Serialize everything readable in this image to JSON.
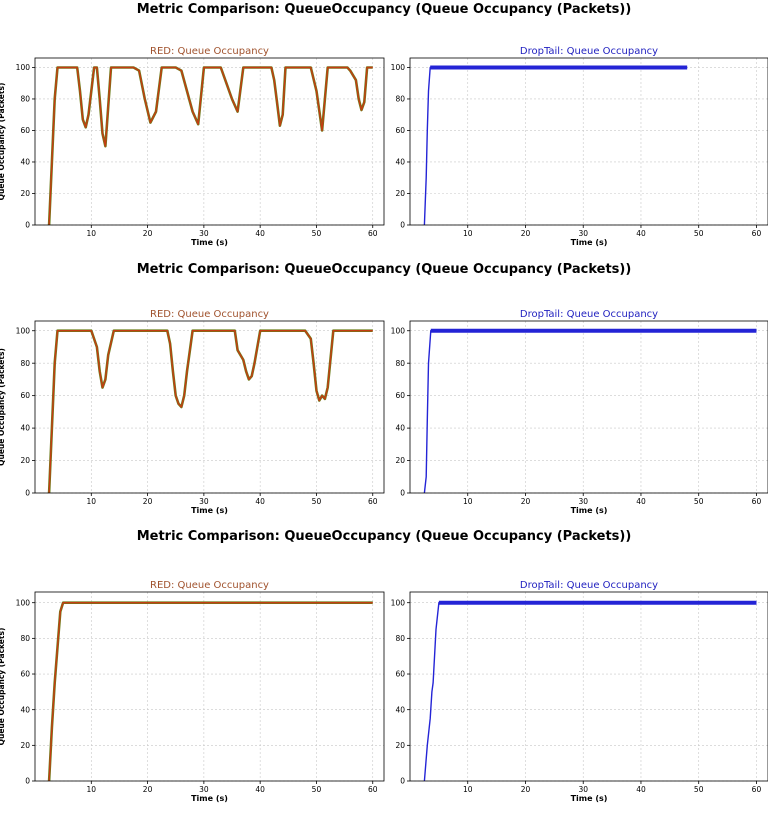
{
  "figure_titles": [
    "Metric Comparison: QueueOccupancy (Queue Occupancy (Packets))",
    "Metric Comparison: QueueOccupancy (Queue Occupancy (Packets))",
    "Metric Comparison: QueueOccupancy (Queue Occupancy (Packets))"
  ],
  "colors": {
    "red_title": "#a0522d",
    "droptail_title": "#1f1fbf",
    "red_line_a": "#c43c12",
    "red_line_b": "#6b7d1a",
    "red_flat": "#a0560f",
    "droptail_line": "#2424d6",
    "grid": "#c8c8c8"
  },
  "chart_data": [
    {
      "type": "line",
      "title": "RED: Queue Occupancy",
      "xlabel": "Time (s)",
      "ylabel": "Queue Occupancy (Packets)",
      "xlim": [
        0,
        62
      ],
      "ylim": [
        0,
        106
      ],
      "xticks": [
        10,
        20,
        30,
        40,
        50,
        60
      ],
      "yticks": [
        0,
        20,
        40,
        60,
        80,
        100
      ],
      "grid": true,
      "series": [
        {
          "x": [
            2.5,
            3.0,
            3.5,
            4.0,
            4.5,
            7.5,
            8.0,
            8.5,
            9.0,
            9.5,
            10.5,
            11.0,
            11.5,
            12.0,
            12.5,
            13.5,
            17.5,
            18.5,
            19.5,
            20.5,
            21.5,
            22.5,
            23.5,
            25.0,
            26.0,
            27.0,
            28.0,
            29.0,
            30.0,
            32.0,
            33.0,
            34.0,
            35.0,
            36.0,
            37.0,
            38.0,
            39.0,
            40.0,
            42.0,
            42.5,
            43.0,
            43.5,
            44.0,
            44.5,
            45.0,
            47.0,
            48.0,
            49.0,
            50.0,
            51.0,
            52.0,
            53.0,
            54.5,
            55.5,
            56.0,
            57.0,
            57.5,
            58.0,
            58.5,
            59.0,
            60.0
          ],
          "y": [
            0,
            40,
            80,
            100,
            100,
            100,
            85,
            67,
            62,
            70,
            100,
            100,
            80,
            58,
            50,
            100,
            100,
            98,
            80,
            65,
            72,
            100,
            100,
            100,
            98,
            85,
            72,
            64,
            100,
            100,
            100,
            90,
            80,
            72,
            100,
            100,
            100,
            100,
            100,
            92,
            78,
            63,
            70,
            100,
            100,
            100,
            100,
            100,
            85,
            60,
            100,
            100,
            100,
            100,
            98,
            92,
            80,
            73,
            78,
            100,
            100
          ]
        }
      ]
    },
    {
      "type": "line",
      "title": "DropTail: Queue Occupancy",
      "xlabel": "Time (s)",
      "ylabel": "",
      "xlim": [
        0,
        62
      ],
      "ylim": [
        0,
        106
      ],
      "xticks": [
        10,
        20,
        30,
        40,
        50,
        60
      ],
      "yticks": [
        0,
        20,
        40,
        60,
        80,
        100
      ],
      "grid": true,
      "series": [
        {
          "x": [
            2.5,
            2.8,
            3.0,
            3.2,
            3.5,
            4.0,
            48.0
          ],
          "y": [
            0,
            30,
            60,
            85,
            100,
            100,
            100
          ]
        }
      ]
    },
    {
      "type": "line",
      "title": "RED: Queue Occupancy",
      "xlabel": "Time (s)",
      "ylabel": "Queue Occupancy (Packets)",
      "xlim": [
        0,
        62
      ],
      "ylim": [
        0,
        106
      ],
      "xticks": [
        10,
        20,
        30,
        40,
        50,
        60
      ],
      "yticks": [
        0,
        20,
        40,
        60,
        80,
        100
      ],
      "grid": true,
      "series": [
        {
          "x": [
            2.5,
            3.0,
            3.5,
            4.0,
            5.0,
            10.0,
            11.0,
            11.5,
            12.0,
            12.5,
            13.0,
            14.0,
            23.5,
            24.0,
            24.5,
            25.0,
            25.5,
            26.0,
            26.5,
            27.0,
            28.0,
            35.5,
            36.0,
            37.0,
            37.5,
            38.0,
            38.5,
            39.0,
            40.0,
            48.0,
            49.0,
            49.5,
            50.0,
            50.5,
            51.0,
            51.5,
            52.0,
            53.0,
            60.0
          ],
          "y": [
            0,
            40,
            80,
            100,
            100,
            100,
            90,
            75,
            65,
            70,
            85,
            100,
            100,
            92,
            75,
            60,
            55,
            53,
            60,
            75,
            100,
            100,
            88,
            82,
            75,
            70,
            72,
            80,
            100,
            100,
            95,
            80,
            63,
            57,
            60,
            58,
            65,
            100,
            100
          ]
        }
      ]
    },
    {
      "type": "line",
      "title": "DropTail: Queue Occupancy",
      "xlabel": "Time (s)",
      "ylabel": "",
      "xlim": [
        0,
        62
      ],
      "ylim": [
        0,
        106
      ],
      "xticks": [
        10,
        20,
        30,
        40,
        50,
        60
      ],
      "yticks": [
        0,
        20,
        40,
        60,
        80,
        100
      ],
      "grid": true,
      "series": [
        {
          "x": [
            2.5,
            2.8,
            3.0,
            3.2,
            3.6,
            4.0,
            60.0
          ],
          "y": [
            0,
            10,
            45,
            80,
            100,
            100,
            100
          ]
        }
      ]
    },
    {
      "type": "line",
      "title": "RED: Queue Occupancy",
      "xlabel": "Time (s)",
      "ylabel": "Queue Occupancy (Packets)",
      "xlim": [
        0,
        62
      ],
      "ylim": [
        0,
        106
      ],
      "xticks": [
        10,
        20,
        30,
        40,
        50,
        60
      ],
      "yticks": [
        0,
        20,
        40,
        60,
        80,
        100
      ],
      "grid": true,
      "series": [
        {
          "x": [
            2.5,
            3.0,
            3.5,
            4.0,
            4.5,
            5.0,
            60.0
          ],
          "y": [
            0,
            30,
            55,
            75,
            95,
            100,
            100
          ]
        }
      ]
    },
    {
      "type": "line",
      "title": "DropTail: Queue Occupancy",
      "xlabel": "Time (s)",
      "ylabel": "",
      "xlim": [
        0,
        62
      ],
      "ylim": [
        0,
        106
      ],
      "xticks": [
        10,
        20,
        30,
        40,
        50,
        60
      ],
      "yticks": [
        0,
        20,
        40,
        60,
        80,
        100
      ],
      "grid": true,
      "series": [
        {
          "x": [
            2.5,
            3.0,
            3.5,
            3.8,
            4.0,
            4.5,
            5.0,
            60.0
          ],
          "y": [
            0,
            20,
            35,
            50,
            55,
            85,
            100,
            100
          ]
        }
      ]
    }
  ]
}
